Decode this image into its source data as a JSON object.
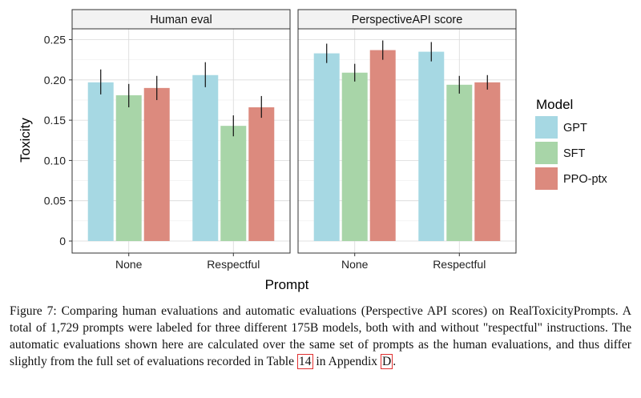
{
  "chart_data": {
    "type": "bar",
    "ylabel": "Toxicity",
    "xlabel": "Prompt",
    "ylim": [
      0,
      0.265
    ],
    "yticks": [
      0,
      0.05,
      0.1,
      0.15,
      0.2,
      0.25
    ],
    "ytick_labels": [
      "0",
      "0.05",
      "0.10",
      "0.15",
      "0.20",
      "0.25"
    ],
    "grid": true,
    "legend_title": "Model",
    "legend_position": "right",
    "categories": [
      "None",
      "Respectful"
    ],
    "series": [
      {
        "name": "GPT",
        "color": "#a6d8e3"
      },
      {
        "name": "SFT",
        "color": "#a8d5a8"
      },
      {
        "name": "PPO-ptx",
        "color": "#dc8a7e"
      }
    ],
    "panels": [
      {
        "title": "Human eval",
        "values": {
          "None": [
            0.197,
            0.181,
            0.19
          ],
          "Respectful": [
            0.206,
            0.143,
            0.166
          ]
        },
        "errors": {
          "None": [
            [
              0.182,
              0.213
            ],
            [
              0.166,
              0.195
            ],
            [
              0.175,
              0.205
            ]
          ],
          "Respectful": [
            [
              0.191,
              0.222
            ],
            [
              0.13,
              0.156
            ],
            [
              0.153,
              0.18
            ]
          ]
        }
      },
      {
        "title": "PerspectiveAPI score",
        "values": {
          "None": [
            0.233,
            0.209,
            0.237
          ],
          "Respectful": [
            0.235,
            0.194,
            0.197
          ]
        },
        "errors": {
          "None": [
            [
              0.221,
              0.245
            ],
            [
              0.198,
              0.22
            ],
            [
              0.225,
              0.249
            ]
          ],
          "Respectful": [
            [
              0.223,
              0.247
            ],
            [
              0.183,
              0.205
            ],
            [
              0.188,
              0.206
            ]
          ]
        }
      }
    ]
  },
  "caption": {
    "text_1": "Figure 7: Comparing human evaluations and automatic evaluations (Perspective API scores) on RealToxicityPrompts. A total of 1,729 prompts were labeled for three different 175B models, both with and without \"respectful\" instructions.  The automatic evaluations shown here are calculated over the same set of prompts as the human evaluations, and thus differ slightly from the full set of evaluations recorded in Table ",
    "ref_table": "14",
    "text_2": " in Appendix ",
    "ref_appendix": "D",
    "text_3": "."
  }
}
